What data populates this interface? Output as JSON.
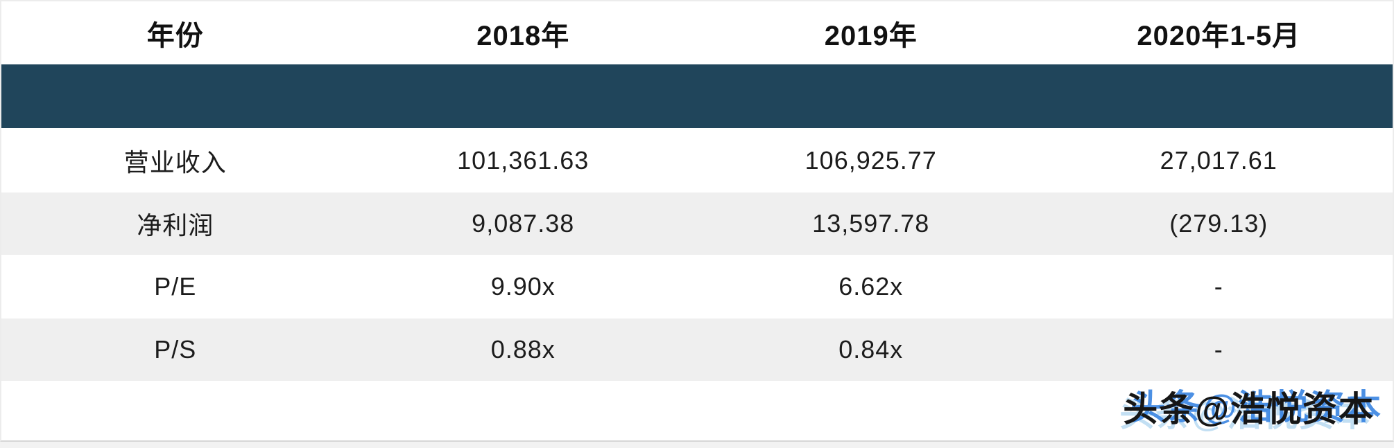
{
  "table": {
    "columns": [
      {
        "label": "年份"
      },
      {
        "label": "2018年"
      },
      {
        "label": "2019年"
      },
      {
        "label": "2020年1-5月"
      }
    ],
    "redacted_band": "",
    "rows": [
      {
        "label": "营业收入",
        "values": [
          "101,361.63",
          "106,925.77",
          "27,017.61"
        ]
      },
      {
        "label": "净利润",
        "values": [
          "9,087.38",
          "13,597.78",
          "(279.13)"
        ]
      },
      {
        "label": "P/E",
        "values": [
          "9.90x",
          "6.62x",
          "-"
        ]
      },
      {
        "label": "P/S",
        "values": [
          "0.88x",
          "0.84x",
          "-"
        ]
      }
    ]
  },
  "watermark": {
    "text": "头条@浩悦资本"
  },
  "colors": {
    "band_navy": "#20455b",
    "row_alt_gray": "#efefef",
    "row_white": "#ffffff",
    "text": "#1c1c1c",
    "watermark_black": "#161616",
    "watermark_blue": "#2d7ddf",
    "border_light": "#ececec"
  },
  "chart_data": {
    "type": "table",
    "title": "",
    "columns": [
      "年份",
      "2018年",
      "2019年",
      "2020年1-5月"
    ],
    "rows": [
      [
        "营业收入",
        "101,361.63",
        "106,925.77",
        "27,017.61"
      ],
      [
        "净利润",
        "9,087.38",
        "13,597.78",
        "(279.13)"
      ],
      [
        "P/E",
        "9.90x",
        "6.62x",
        "-"
      ],
      [
        "P/S",
        "0.88x",
        "0.84x",
        "-"
      ]
    ],
    "notes": "Second banner row is a solid navy redacted band with no text; negative value shown in parentheses; watermark 头条@浩悦资本 at bottom right"
  }
}
